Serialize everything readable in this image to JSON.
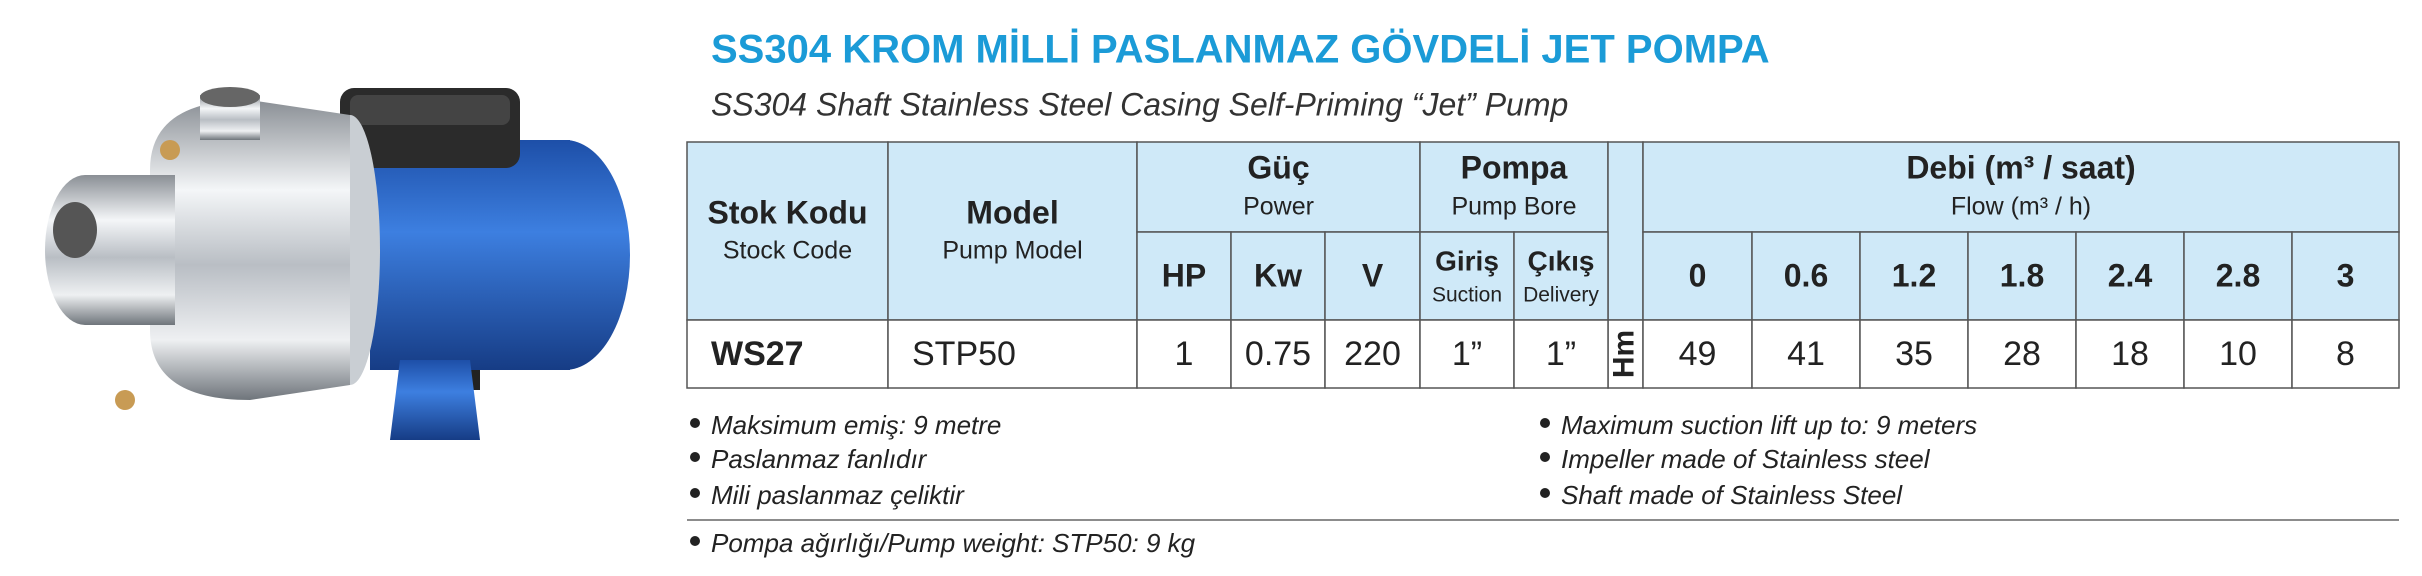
{
  "title": "SS304 KROM MİLLİ PASLANMAZ GÖVDELİ JET POMPA",
  "subtitle": "SS304 Shaft Stainless Steel Casing Self-Priming “Jet” Pump",
  "table": {
    "headers": {
      "stock_code": {
        "tr": "Stok Kodu",
        "en": "Stock Code"
      },
      "model": {
        "tr": "Model",
        "en": "Pump Model"
      },
      "power": {
        "tr": "Güç",
        "en": "Power",
        "columns": [
          "HP",
          "Kw",
          "V"
        ]
      },
      "pump_bore": {
        "tr": "Pompa",
        "en": "Pump Bore",
        "columns": [
          {
            "tr": "Giriş",
            "en": "Suction"
          },
          {
            "tr": "Çıkış",
            "en": "Delivery"
          }
        ]
      },
      "flow": {
        "tr": "Debi (m³ / saat)",
        "en": "Flow (m³ / h)",
        "columns": [
          "0",
          "0.6",
          "1.2",
          "1.8",
          "2.4",
          "2.8",
          "3"
        ]
      }
    },
    "unit": "Hm",
    "rows": [
      [
        "WS27",
        "STP50",
        "1",
        "0.75",
        "220",
        "1”",
        "1”",
        "49",
        "41",
        "35",
        "28",
        "18",
        "10",
        "8"
      ]
    ]
  },
  "features_tr": [
    "Maksimum emiş: 9 metre",
    "Paslanmaz fanlıdır",
    "Mili paslanmaz çeliktir"
  ],
  "features_en": [
    "Maximum suction lift up to: 9 meters",
    "Impeller made of Stainless steel",
    "Shaft made of Stainless Steel"
  ],
  "weight_note": "Pompa ağırlığı/Pump weight: STP50: 9 kg"
}
